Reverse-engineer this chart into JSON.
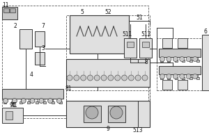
{
  "fig_width": 3.0,
  "fig_height": 2.0,
  "dpi": 100,
  "bg": "white",
  "lc": "#333333",
  "dc": "#666666",
  "fc_light": "#e0e0e0",
  "fc_mid": "#c8c8c8",
  "fc_dark": "#b0b0b0"
}
